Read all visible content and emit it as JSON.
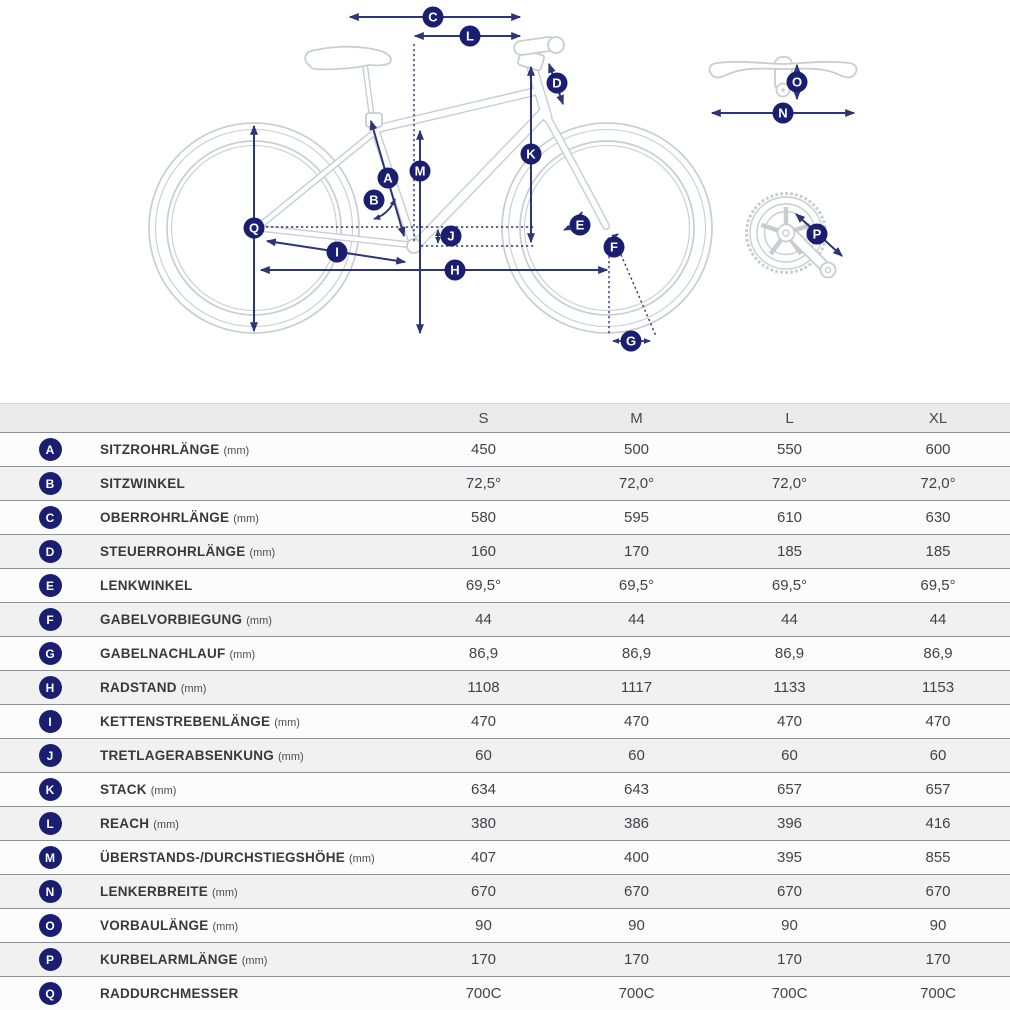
{
  "diagram": {
    "badge_letters": [
      "A",
      "B",
      "C",
      "D",
      "E",
      "F",
      "G",
      "H",
      "I",
      "J",
      "K",
      "L",
      "M",
      "N",
      "O",
      "P",
      "Q"
    ],
    "views": {
      "main": "bike-side-view",
      "top_right": "handlebar-top-view",
      "bottom_right": "crankset-view"
    },
    "colors": {
      "annotation_line": "#2e3478",
      "badge_fill": "#1a1e70",
      "badge_text": "#ffffff",
      "bike_outline": "#c9cdd2"
    }
  },
  "table": {
    "size_headers": [
      "S",
      "M",
      "L",
      "XL"
    ],
    "colors": {
      "header_bg": "#ebebeb",
      "row_odd_bg": "#fcfcfc",
      "row_even_bg": "#f1f1f1",
      "separator": "#8f9194"
    },
    "rows": [
      {
        "letter": "A",
        "label": "SITZROHRLÄNGE",
        "unit": "(mm)",
        "values": [
          "450",
          "500",
          "550",
          "600"
        ]
      },
      {
        "letter": "B",
        "label": "SITZWINKEL",
        "unit": "",
        "values": [
          "72,5°",
          "72,0°",
          "72,0°",
          "72,0°"
        ]
      },
      {
        "letter": "C",
        "label": "OBERROHRLÄNGE",
        "unit": "(mm)",
        "values": [
          "580",
          "595",
          "610",
          "630"
        ]
      },
      {
        "letter": "D",
        "label": "STEUERROHRLÄNGE",
        "unit": "(mm)",
        "values": [
          "160",
          "170",
          "185",
          "185"
        ]
      },
      {
        "letter": "E",
        "label": "LENKWINKEL",
        "unit": "",
        "values": [
          "69,5°",
          "69,5°",
          "69,5°",
          "69,5°"
        ]
      },
      {
        "letter": "F",
        "label": "GABELVORBIEGUNG",
        "unit": "(mm)",
        "values": [
          "44",
          "44",
          "44",
          "44"
        ]
      },
      {
        "letter": "G",
        "label": "GABELNACHLAUF",
        "unit": "(mm)",
        "values": [
          "86,9",
          "86,9",
          "86,9",
          "86,9"
        ]
      },
      {
        "letter": "H",
        "label": "RADSTAND",
        "unit": "(mm)",
        "values": [
          "1108",
          "1117",
          "1133",
          "1153"
        ]
      },
      {
        "letter": "I",
        "label": "KETTENSTREBENLÄNGE",
        "unit": "(mm)",
        "values": [
          "470",
          "470",
          "470",
          "470"
        ]
      },
      {
        "letter": "J",
        "label": "TRETLAGERABSENKUNG",
        "unit": "(mm)",
        "values": [
          "60",
          "60",
          "60",
          "60"
        ]
      },
      {
        "letter": "K",
        "label": "STACK",
        "unit": "(mm)",
        "values": [
          "634",
          "643",
          "657",
          "657"
        ]
      },
      {
        "letter": "L",
        "label": "REACH",
        "unit": "(mm)",
        "values": [
          "380",
          "386",
          "396",
          "416"
        ]
      },
      {
        "letter": "M",
        "label": "ÜBERSTANDS-/DURCHSTIEGSHÖHE",
        "unit": "(mm)",
        "values": [
          "407",
          "400",
          "395",
          "855"
        ]
      },
      {
        "letter": "N",
        "label": "LENKERBREITE",
        "unit": "(mm)",
        "values": [
          "670",
          "670",
          "670",
          "670"
        ]
      },
      {
        "letter": "O",
        "label": "VORBAULÄNGE",
        "unit": "(mm)",
        "values": [
          "90",
          "90",
          "90",
          "90"
        ]
      },
      {
        "letter": "P",
        "label": "KURBELARMLÄNGE",
        "unit": "(mm)",
        "values": [
          "170",
          "170",
          "170",
          "170"
        ]
      },
      {
        "letter": "Q",
        "label": "RADDURCHMESSER",
        "unit": "",
        "values": [
          "700C",
          "700C",
          "700C",
          "700C"
        ]
      }
    ]
  }
}
